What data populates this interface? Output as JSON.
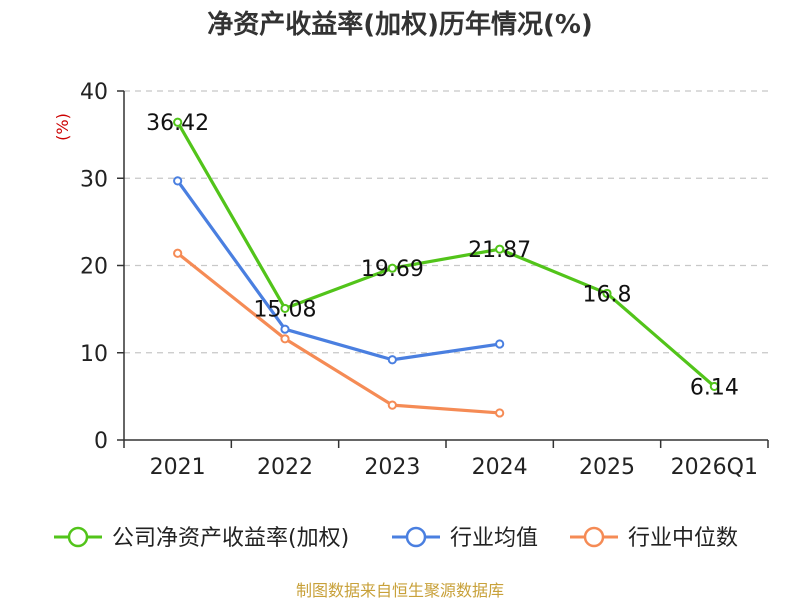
{
  "chart_data": {
    "type": "line",
    "title": "净资产收益率(加权)历年情况(%)",
    "ylabel": "(%)",
    "categories": [
      "2021",
      "2022",
      "2023",
      "2024",
      "2025",
      "2026Q1"
    ],
    "ylim": [
      0,
      40
    ],
    "yticks": [
      0,
      10,
      20,
      30,
      40
    ],
    "grid": true,
    "legend_position": "bottom",
    "series": [
      {
        "name": "公司净资产收益率(加权)",
        "color": "#52c41a",
        "values": [
          36.42,
          15.08,
          19.69,
          21.87,
          16.8,
          6.14
        ],
        "labels": [
          "36.42",
          "15.08",
          "19.69",
          "21.87",
          "16.8",
          "6.14"
        ]
      },
      {
        "name": "行业均值",
        "color": "#4a7fe0",
        "values": [
          29.7,
          12.7,
          9.2,
          11.0,
          null,
          null
        ]
      },
      {
        "name": "行业中位数",
        "color": "#f58b55",
        "values": [
          21.4,
          11.6,
          4.0,
          3.1,
          null,
          null
        ]
      }
    ],
    "source": "制图数据来自恒生聚源数据库"
  }
}
